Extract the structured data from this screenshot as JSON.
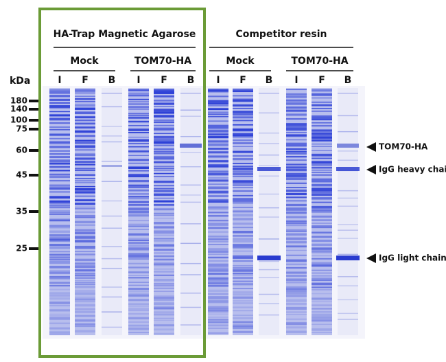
{
  "axis_label": "kDa",
  "markers": [
    180,
    140,
    100,
    75,
    60,
    45,
    35,
    25
  ],
  "groups": [
    {
      "title": "HA-Trap Magnetic Agarose",
      "subgroups": [
        {
          "name": "Mock",
          "lanes": [
            "I",
            "F",
            "B"
          ]
        },
        {
          "name": "TOM70-HA",
          "lanes": [
            "I",
            "F",
            "B"
          ]
        }
      ]
    },
    {
      "title": "Competitor resin",
      "subgroups": [
        {
          "name": "Mock",
          "lanes": [
            "I",
            "F",
            "B"
          ]
        },
        {
          "name": "TOM70-HA",
          "lanes": [
            "I",
            "F",
            "B"
          ]
        }
      ]
    }
  ],
  "annotations": [
    "TOM70-HA",
    "IgG heavy chain",
    "IgG light chain"
  ]
}
